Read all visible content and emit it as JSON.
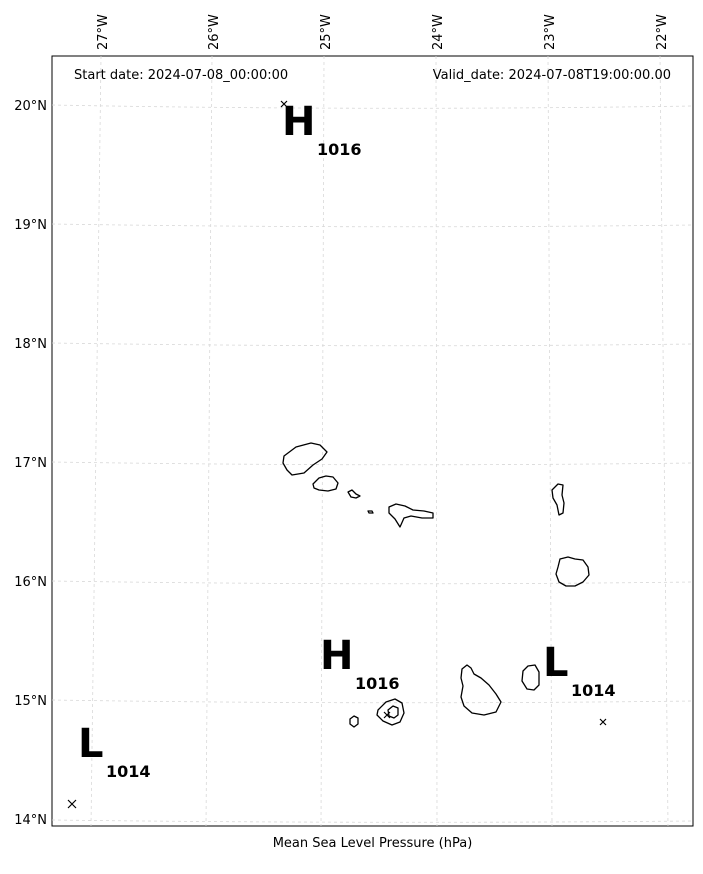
{
  "map": {
    "start_date_text": "Start date: 2024-07-08_00:00:00",
    "valid_date_text": "Valid_date: 2024-07-08T19:00:00.00",
    "caption": "Mean Sea Level Pressure (hPa)",
    "lon_labels": [
      "27°W",
      "26°W",
      "25°W",
      "24°W",
      "23°W",
      "22°W"
    ],
    "lat_labels": [
      "20°N",
      "19°N",
      "18°N",
      "17°N",
      "16°N",
      "15°N",
      "14°N"
    ],
    "pressure_systems": [
      {
        "type": "H",
        "value": "1016",
        "lon": -25.3,
        "lat": 20.0
      },
      {
        "type": "H",
        "value": "1016",
        "lon": -24.5,
        "lat": 14.9
      },
      {
        "type": "L",
        "value": "1014",
        "lon": -22.5,
        "lat": 14.8
      },
      {
        "type": "L",
        "value": "1014",
        "lon": -27.2,
        "lat": 14.1
      }
    ],
    "colors": {
      "grid": "#d0d0d0",
      "coast": "#000000",
      "frame": "#000000"
    }
  }
}
